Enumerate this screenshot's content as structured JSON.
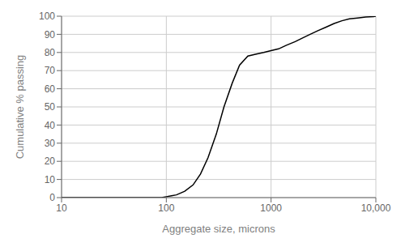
{
  "chart_data": {
    "type": "line",
    "x": [
      10,
      63,
      75,
      90,
      100,
      112,
      125,
      150,
      180,
      212,
      250,
      300,
      355,
      425,
      500,
      600,
      710,
      850,
      1000,
      1180,
      1400,
      1700,
      2000,
      2360,
      2800,
      3350,
      4000,
      4750,
      5600,
      6700,
      8000,
      9500,
      10000
    ],
    "values": [
      0,
      0,
      0,
      0,
      0.5,
      1.0,
      1.5,
      3.5,
      7,
      13,
      22,
      35,
      50,
      63,
      73,
      78,
      79,
      80,
      81,
      82,
      84,
      86,
      88,
      90,
      92,
      94,
      96,
      97.5,
      98.5,
      99,
      99.5,
      99.8,
      100
    ],
    "xlim": [
      10,
      10000
    ],
    "ylim": [
      0,
      100
    ],
    "xticks": [
      10,
      100,
      1000,
      {
        "value": 10000,
        "label": "10,000"
      }
    ],
    "yticks": [
      0,
      10,
      20,
      30,
      40,
      50,
      60,
      70,
      80,
      90,
      100
    ],
    "xlabel": "Aggregate size, microns",
    "ylabel": "Cumulative % passing",
    "log": "x",
    "grid": true,
    "color": "#000000"
  }
}
